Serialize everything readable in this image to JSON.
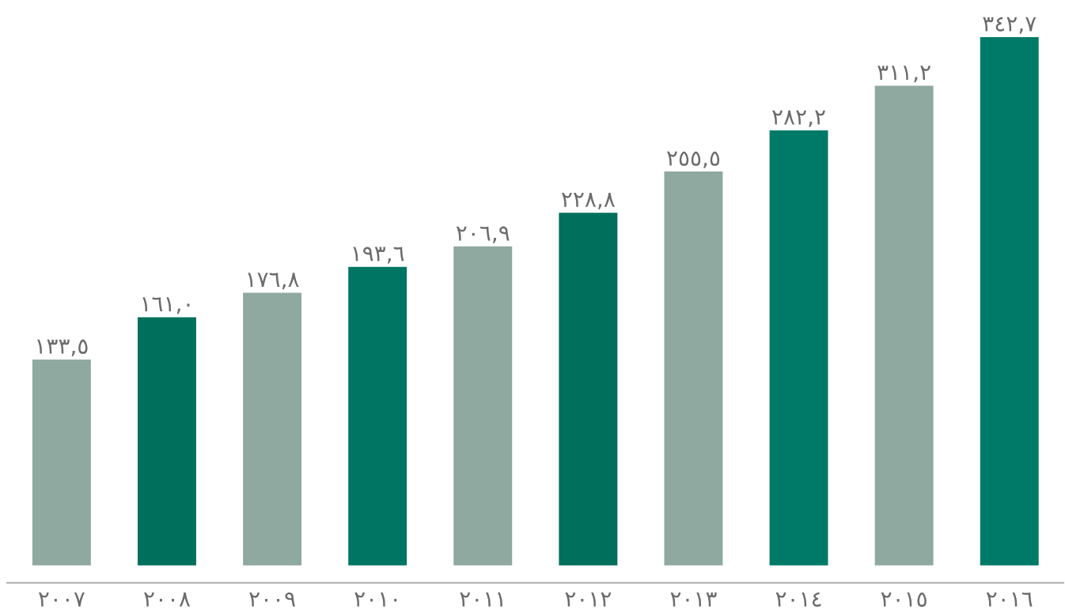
{
  "chart_data": {
    "type": "bar",
    "categories": [
      "٢٠٠٧",
      "٢٠٠٨",
      "٢٠٠٩",
      "٢٠١٠",
      "٢٠١١",
      "٢٠١٢",
      "٢٠١٣",
      "٢٠١٤",
      "٢٠١٥",
      "٢٠١٦"
    ],
    "values": [
      133.5,
      161.0,
      176.8,
      193.6,
      206.9,
      228.8,
      255.5,
      282.2,
      311.2,
      342.7
    ],
    "value_labels": [
      "١٣٣,٥",
      "١٦١,٠",
      "١٧٦,٨",
      "١٩٣,٦",
      "٢٠٦,٩",
      "٢٢٨,٨",
      "٢٥٥,٥",
      "٢٨٢,٢",
      "٣١١,٢",
      "٣٤٢,٧"
    ],
    "colors": [
      "#8fa9a1",
      "#006f5c",
      "#8fa9a1",
      "#007563",
      "#8fa9a1",
      "#006f5c",
      "#8fa9a1",
      "#007a68",
      "#8fa9a1",
      "#007a68"
    ]
  }
}
